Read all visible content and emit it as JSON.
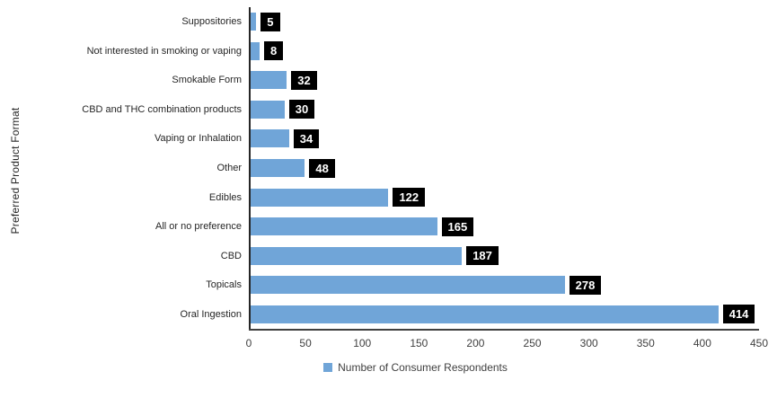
{
  "chart_data": {
    "type": "bar",
    "orientation": "horizontal",
    "categories": [
      "Suppositories",
      "Not interested in smoking or vaping",
      "Smokable Form",
      "CBD and THC combination products",
      "Vaping or Inhalation",
      "Other",
      "Edibles",
      "All or no preference",
      "CBD",
      "Topicals",
      "Oral Ingestion"
    ],
    "values": [
      5,
      8,
      32,
      30,
      34,
      48,
      122,
      165,
      187,
      278,
      414
    ],
    "series": [
      {
        "name": "Number of Consumer Respondents",
        "values": [
          5,
          8,
          32,
          30,
          34,
          48,
          122,
          165,
          187,
          278,
          414
        ]
      }
    ],
    "title": "",
    "xlabel": "",
    "ylabel": "Preferred Product Format",
    "xlim": [
      0,
      450
    ],
    "xticks": [
      0,
      50,
      100,
      150,
      200,
      250,
      300,
      350,
      400,
      450
    ],
    "grid": false,
    "legend": {
      "position": "bottom",
      "label": "Number of Consumer Respondents"
    },
    "colors": {
      "bar": "#70A5D8",
      "value_label_bg": "#000000",
      "value_label_text": "#ffffff",
      "axis_line": "#404040",
      "text": "#262626"
    }
  }
}
